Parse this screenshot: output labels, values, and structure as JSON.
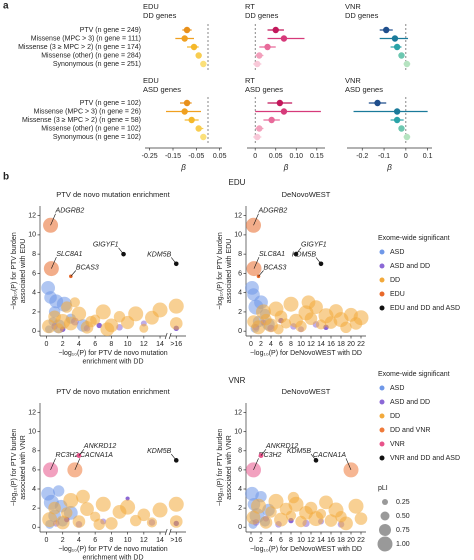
{
  "panel_labels": [
    "a",
    "b"
  ],
  "sections": [
    "EDU",
    "VNR"
  ],
  "chart_data": [
    {
      "type": "forest",
      "title": "EDU",
      "subtitle": "DD genes",
      "categories": [
        "PTV (n gene = 249)",
        "Missense (MPC > 3) (n gene = 111)",
        "Missense (3 ≥ MPC > 2) (n gene = 174)",
        "Missense (other) (n gene = 284)",
        "Synonymous (n gene = 251)"
      ],
      "values": [
        -0.09,
        -0.1,
        -0.06,
        -0.04,
        -0.02
      ],
      "ci_low": [
        -0.11,
        -0.14,
        -0.09,
        -0.05,
        -0.03
      ],
      "ci_high": [
        -0.07,
        -0.06,
        -0.04,
        -0.03,
        -0.01
      ],
      "colors": [
        "#e8901a",
        "#f0a020",
        "#f5b82a",
        "#f8cd50",
        "#fbe07a"
      ],
      "xlim": [
        -0.27,
        0.06
      ],
      "refline": 0
    },
    {
      "type": "forest",
      "title": "RT",
      "subtitle": "DD genes",
      "values": [
        0.05,
        0.07,
        0.03,
        0.01,
        0.005
      ],
      "ci_low": [
        0.03,
        0.03,
        0.01,
        0,
        -0.005
      ],
      "ci_high": [
        0.07,
        0.12,
        0.05,
        0.02,
        0.015
      ],
      "colors": [
        "#c2185b",
        "#d63a7a",
        "#e86a9a",
        "#f2a0bc",
        "#f8c8d8"
      ],
      "xlim": [
        -0.02,
        0.17
      ],
      "refline": 0
    },
    {
      "type": "forest",
      "title": "VNR",
      "subtitle": "DD genes",
      "values": [
        -0.09,
        -0.05,
        -0.04,
        -0.02,
        0.005
      ],
      "ci_low": [
        -0.12,
        -0.12,
        -0.07,
        -0.03,
        -0.01
      ],
      "ci_high": [
        -0.06,
        0.01,
        -0.02,
        -0.01,
        0.02
      ],
      "colors": [
        "#1f4e8c",
        "#1a7a9a",
        "#2aa3a8",
        "#6cc7b0",
        "#b5e3c0"
      ],
      "xlim": [
        -0.27,
        0.12
      ],
      "refline": 0
    },
    {
      "type": "forest",
      "title": "EDU",
      "subtitle": "ASD genes",
      "categories": [
        "PTV (n gene = 102)",
        "Missense (MPC > 3) (n gene = 26)",
        "Missense (3 ≥ MPC > 2) (n gene = 58)",
        "Missense (other) (n gene = 102)",
        "Synonymous (n gene = 102)"
      ],
      "values": [
        -0.09,
        -0.1,
        -0.07,
        -0.04,
        -0.02
      ],
      "ci_low": [
        -0.12,
        -0.18,
        -0.1,
        -0.05,
        -0.03
      ],
      "ci_high": [
        -0.07,
        -0.03,
        -0.04,
        -0.02,
        -0.01
      ],
      "colors": [
        "#e8901a",
        "#f0a020",
        "#f5b82a",
        "#f8cd50",
        "#fbe07a"
      ],
      "xlim": [
        -0.27,
        0.06
      ],
      "refline": 0,
      "xticks": [
        -0.25,
        -0.15,
        -0.05,
        0.05
      ],
      "xlabel": "β"
    },
    {
      "type": "forest",
      "title": "RT",
      "subtitle": "ASD genes",
      "values": [
        0.06,
        0.07,
        0.04,
        0.01,
        0.005
      ],
      "ci_low": [
        0.03,
        0,
        0.02,
        0,
        -0.005
      ],
      "ci_high": [
        0.09,
        0.16,
        0.06,
        0.02,
        0.015
      ],
      "colors": [
        "#c2185b",
        "#d63a7a",
        "#e86a9a",
        "#f2a0bc",
        "#f8c8d8"
      ],
      "xlim": [
        -0.02,
        0.17
      ],
      "refline": 0,
      "xticks": [
        0,
        0.05,
        {
          "value": 0.1,
          "label": "0.10"
        },
        0.15
      ],
      "xlabel": "β"
    },
    {
      "type": "forest",
      "title": "VNR",
      "subtitle": "ASD genes",
      "values": [
        -0.13,
        -0.04,
        -0.04,
        -0.02,
        0.005
      ],
      "ci_low": [
        -0.17,
        -0.24,
        -0.07,
        -0.03,
        -0.01
      ],
      "ci_high": [
        -0.09,
        0.1,
        -0.01,
        -0.01,
        0.02
      ],
      "colors": [
        "#1f4e8c",
        "#1a7a9a",
        "#2aa3a8",
        "#6cc7b0",
        "#b5e3c0"
      ],
      "xlim": [
        -0.27,
        0.12
      ],
      "refline": 0,
      "xticks": [
        -0.2,
        -0.1,
        0,
        0.1
      ],
      "xlabel": "β"
    },
    {
      "type": "scatter",
      "title": "PTV de novo mutation enrichment",
      "xlabel": [
        "−log₁₀(P) for PTV de novo mutation",
        "enrichment with DD"
      ],
      "ylabel": [
        "−log₁₀(P) for PTV burden",
        "associated with EDU"
      ],
      "xlim": [
        -0.8,
        17.2
      ],
      "ylim": [
        -0.5,
        13
      ],
      "xticks": [
        0,
        2,
        4,
        6,
        8,
        10,
        12,
        14,
        {
          "value": 16,
          "label": ">16"
        }
      ],
      "yticks": [
        0,
        2,
        4,
        6,
        8,
        10,
        12
      ],
      "axis_break": 15,
      "series": [
        {
          "color": "#6f98e8",
          "x": [
            0.2,
            0.5,
            1,
            0.8,
            1.5,
            2.2,
            3,
            4.5,
            0.3,
            1.2
          ],
          "y": [
            4.5,
            3.5,
            2,
            1,
            0.5,
            2.8,
            1.3,
            0.6,
            0.2,
            3.1
          ],
          "pli": [
            0.9,
            0.8,
            0.7,
            0.5,
            0.9,
            1,
            0.6,
            0.8,
            0.4,
            0.9
          ]
        },
        {
          "color": "#8b68d6",
          "x": [
            1,
            2,
            3.5,
            5,
            6.5,
            9,
            12,
            16
          ],
          "y": [
            0.5,
            0.2,
            1,
            0.3,
            0.6,
            0.4,
            0.8,
            0.3
          ],
          "pli": [
            0.3,
            0.2,
            0.4,
            0.3,
            0.2,
            0.3,
            0.25,
            0.2
          ]
        },
        {
          "color": "#f2a93b",
          "x": [
            0.3,
            1,
            1.5,
            2,
            2.5,
            3,
            4,
            5,
            6,
            7,
            8,
            9,
            10,
            11,
            12,
            13,
            14,
            16,
            16,
            3.5,
            5.5,
            7.5
          ],
          "y": [
            0.5,
            1.5,
            0.3,
            1,
            2.5,
            0.8,
            1.8,
            0.4,
            1.2,
            2,
            0.6,
            1.5,
            0.9,
            1.8,
            0.3,
            1.4,
            2.2,
            2.6,
            0.8,
            3,
            1,
            0.2
          ],
          "pli": [
            0.9,
            0.8,
            0.6,
            1,
            0.7,
            0.9,
            0.95,
            0.8,
            0.6,
            1,
            0.9,
            0.7,
            0.85,
            1,
            0.5,
            0.9,
            1,
            1,
            0.8,
            0.6,
            0.7,
            0.9
          ]
        },
        {
          "color": "#e8692a",
          "x": [
            0.5,
            0.6,
            3
          ],
          "y": [
            11,
            6.5,
            5.7
          ],
          "pli": [
            1,
            1,
            0.05
          ],
          "labels": [
            "ADGRB2",
            "SLC8A1",
            "BCAS3"
          ]
        },
        {
          "color": "#111111",
          "x": [
            9.5,
            16
          ],
          "y": [
            8,
            7
          ],
          "labels": [
            "GIGYF1",
            "KDM5B"
          ]
        }
      ]
    },
    {
      "type": "scatter",
      "title": "DeNovoWEST",
      "xlabel": [
        "−log₁₀(P) for DeNovoWEST with DD"
      ],
      "ylabel": [
        "−log₁₀(P) for PTV burden",
        "associated with EDU"
      ],
      "xlim": [
        -1,
        23
      ],
      "ylim": [
        -0.5,
        13
      ],
      "xticks": [
        0,
        2,
        4,
        6,
        8,
        10,
        12,
        14,
        16,
        18,
        20,
        22
      ],
      "yticks": [
        0,
        2,
        4,
        6,
        8,
        10,
        12
      ],
      "legend_title": "Exome-wide significant",
      "series": [
        {
          "name": "ASD",
          "color": "#6f98e8",
          "x": [
            0.2,
            0.5,
            1,
            1.5,
            2,
            2.8,
            3.5,
            0.8
          ],
          "y": [
            4.5,
            3.8,
            2.5,
            1,
            3,
            1.8,
            0.7,
            0.3
          ],
          "pli": [
            0.9,
            0.8,
            1,
            0.7,
            0.9,
            0.6,
            0.8,
            0.5
          ]
        },
        {
          "name": "ASD and DD",
          "color": "#8b68d6",
          "x": [
            1,
            2.5,
            4,
            6,
            8.5,
            10,
            13,
            15
          ],
          "y": [
            0.4,
            0.9,
            0.3,
            1.1,
            0.5,
            0.2,
            0.7,
            0.4
          ],
          "pli": [
            0.3,
            0.25,
            0.35,
            0.2,
            0.3,
            0.25,
            0.3,
            0.2
          ]
        },
        {
          "name": "DD",
          "color": "#f2a93b",
          "x": [
            0.5,
            1.5,
            2.5,
            3,
            4,
            5,
            6,
            7,
            8,
            9,
            10,
            11,
            12,
            13,
            14,
            15,
            16,
            17,
            18,
            19,
            20,
            21,
            22,
            5.5,
            11.5
          ],
          "y": [
            1,
            0.4,
            2,
            1.2,
            0.6,
            2.3,
            1.5,
            0.8,
            2.8,
            1.1,
            0.5,
            1.9,
            1.3,
            2.5,
            0.7,
            1.6,
            0.9,
            2.1,
            1.2,
            0.4,
            1.7,
            0.8,
            1.4,
            0.2,
            3
          ],
          "pli": [
            0.8,
            0.9,
            1,
            0.7,
            0.9,
            1,
            0.8,
            0.6,
            1,
            0.9,
            0.7,
            1,
            0.8,
            0.9,
            0.6,
            1,
            0.8,
            0.9,
            1,
            0.7,
            0.9,
            0.8,
            1,
            0.6,
            0.9
          ]
        },
        {
          "name": "EDU",
          "color": "#e8692a",
          "x": [
            0.5,
            0.6,
            1.5
          ],
          "y": [
            11,
            6.5,
            5.7
          ],
          "pli": [
            1,
            1,
            0.05
          ],
          "labels": [
            "ADGRB2",
            "SLC8A1",
            "BCAS3"
          ]
        },
        {
          "name": "EDU and DD and ASD",
          "color": "#111111",
          "x": [
            9,
            14
          ],
          "y": [
            8,
            7
          ],
          "labels": [
            "GIGYF1",
            "KDM5B"
          ]
        }
      ]
    },
    {
      "type": "scatter",
      "title": "PTV de novo mutation enrichment",
      "xlabel": [
        "−log₁₀(P) for PTV de novo mutation",
        "enrichment with DD"
      ],
      "ylabel": [
        "−log₁₀(P) for PTV burden",
        "associated with VNR"
      ],
      "xlim": [
        -0.8,
        17.2
      ],
      "ylim": [
        -0.5,
        13
      ],
      "xticks": [
        0,
        2,
        4,
        6,
        8,
        10,
        12,
        14,
        {
          "value": 16,
          "label": ">16"
        }
      ],
      "yticks": [
        0,
        2,
        4,
        6,
        8,
        10,
        12
      ],
      "axis_break": 15,
      "series": [
        {
          "color": "#6f98e8",
          "x": [
            0.2,
            0.6,
            1,
            1.5,
            2,
            3,
            0.4,
            1.8
          ],
          "y": [
            3.5,
            2.6,
            1.2,
            3.8,
            0.6,
            1.5,
            0.3,
            2.2
          ],
          "pli": [
            0.9,
            1,
            0.8,
            0.7,
            0.6,
            0.9,
            0.5,
            0.8
          ]
        },
        {
          "color": "#8b68d6",
          "x": [
            1.2,
            2.5,
            4,
            7,
            10,
            13,
            16
          ],
          "y": [
            0.4,
            0.8,
            0.3,
            0.6,
            3,
            0.5,
            0.4
          ],
          "pli": [
            0.3,
            0.2,
            0.3,
            0.25,
            0.1,
            0.3,
            0.2
          ]
        },
        {
          "color": "#f2a93b",
          "x": [
            0.4,
            1,
            2,
            2.5,
            3,
            4,
            5,
            6,
            7,
            8,
            9,
            10,
            11,
            12,
            13,
            14,
            16,
            16,
            4.5,
            6.5
          ],
          "y": [
            0.8,
            2,
            0.5,
            1.5,
            2.8,
            0.6,
            1.9,
            1.1,
            2.4,
            0.4,
            1.6,
            2.1,
            0.7,
            1.3,
            0.5,
            1.8,
            2.4,
            0.6,
            3.2,
            0.3
          ],
          "pli": [
            1,
            0.8,
            0.9,
            0.7,
            1,
            0.8,
            0.9,
            0.6,
            1,
            0.8,
            0.9,
            1,
            0.7,
            0.8,
            0.6,
            1,
            1,
            0.8,
            0.9,
            0.7
          ]
        },
        {
          "color": "#ef7a3a",
          "x": [
            3.5
          ],
          "y": [
            6
          ],
          "pli": [
            1
          ],
          "labels": [
            "CACNA1A"
          ]
        },
        {
          "color": "#e8538a",
          "x": [
            0.5,
            4
          ],
          "y": [
            6,
            7.5
          ],
          "pli": [
            1,
            0.15
          ],
          "labels": [
            "RC3H2",
            "ANKRD12"
          ]
        },
        {
          "color": "#111111",
          "x": [
            16
          ],
          "y": [
            7
          ],
          "labels": [
            "KDM5B"
          ]
        }
      ]
    },
    {
      "type": "scatter",
      "title": "DeNovoWEST",
      "xlabel": [
        "−log₁₀(P) for DeNovoWEST with DD"
      ],
      "ylabel": [
        "−log₁₀(P) for PTV burden",
        "associated with VNR"
      ],
      "xlim": [
        -1,
        23
      ],
      "ylim": [
        -0.5,
        13
      ],
      "xticks": [
        0,
        2,
        4,
        6,
        8,
        10,
        12,
        14,
        16,
        18,
        20,
        22
      ],
      "yticks": [
        0,
        2,
        4,
        6,
        8,
        10,
        12
      ],
      "legend_title": "Exome-wide significant",
      "size_legend": {
        "title": "pLI",
        "values": [
          0.25,
          {
            "value": 0.5,
            "label": "0.50"
          },
          0.75,
          {
            "value": 1,
            "label": "1.00"
          }
        ]
      },
      "series": [
        {
          "name": "ASD",
          "color": "#6f98e8",
          "x": [
            0.2,
            0.6,
            1.2,
            2,
            2.8,
            0.4,
            3.5
          ],
          "y": [
            3.5,
            2.4,
            1.2,
            3.2,
            0.6,
            0.3,
            1.8
          ],
          "pli": [
            0.9,
            0.8,
            1,
            0.7,
            0.6,
            0.5,
            0.8
          ]
        },
        {
          "name": "ASD and DD",
          "color": "#8b68d6",
          "x": [
            1,
            3,
            5.5,
            8,
            11,
            14,
            18
          ],
          "y": [
            0.5,
            0.9,
            0.3,
            0.7,
            0.4,
            0.6,
            0.3
          ],
          "pli": [
            0.3,
            0.25,
            0.3,
            0.2,
            0.35,
            0.25,
            0.3
          ]
        },
        {
          "name": "DD",
          "color": "#f2a93b",
          "x": [
            0.5,
            1.5,
            3,
            4,
            5,
            6,
            7,
            8,
            9,
            10,
            11,
            12,
            13,
            14,
            15,
            16,
            17,
            18,
            19,
            21,
            22,
            8.5
          ],
          "y": [
            1,
            2.2,
            0.5,
            1.6,
            2.7,
            0.8,
            1.9,
            1.2,
            2.4,
            0.6,
            1.5,
            2,
            0.9,
            1.4,
            2.6,
            0.7,
            1.8,
            1.1,
            0.4,
            2.2,
            0.9,
            3.1
          ],
          "pli": [
            0.9,
            1,
            0.8,
            0.7,
            1,
            0.9,
            0.8,
            0.6,
            1,
            0.7,
            0.9,
            0.8,
            1,
            0.6,
            0.9,
            0.8,
            1,
            0.7,
            0.9,
            1,
            0.8,
            0.7
          ]
        },
        {
          "name": "DD and VNR",
          "color": "#ef7a3a",
          "x": [
            20
          ],
          "y": [
            6
          ],
          "pli": [
            1
          ],
          "labels": [
            "CACNA1A"
          ]
        },
        {
          "name": "VNR",
          "color": "#e8538a",
          "x": [
            0.5,
            2
          ],
          "y": [
            6,
            7.5
          ],
          "pli": [
            1,
            0.15
          ],
          "labels": [
            "RC3H2",
            "ANKRD12"
          ]
        },
        {
          "name": "VNR and DD and ASD",
          "color": "#111111",
          "x": [
            13
          ],
          "y": [
            7
          ],
          "labels": [
            "KDM5B"
          ]
        }
      ]
    }
  ]
}
